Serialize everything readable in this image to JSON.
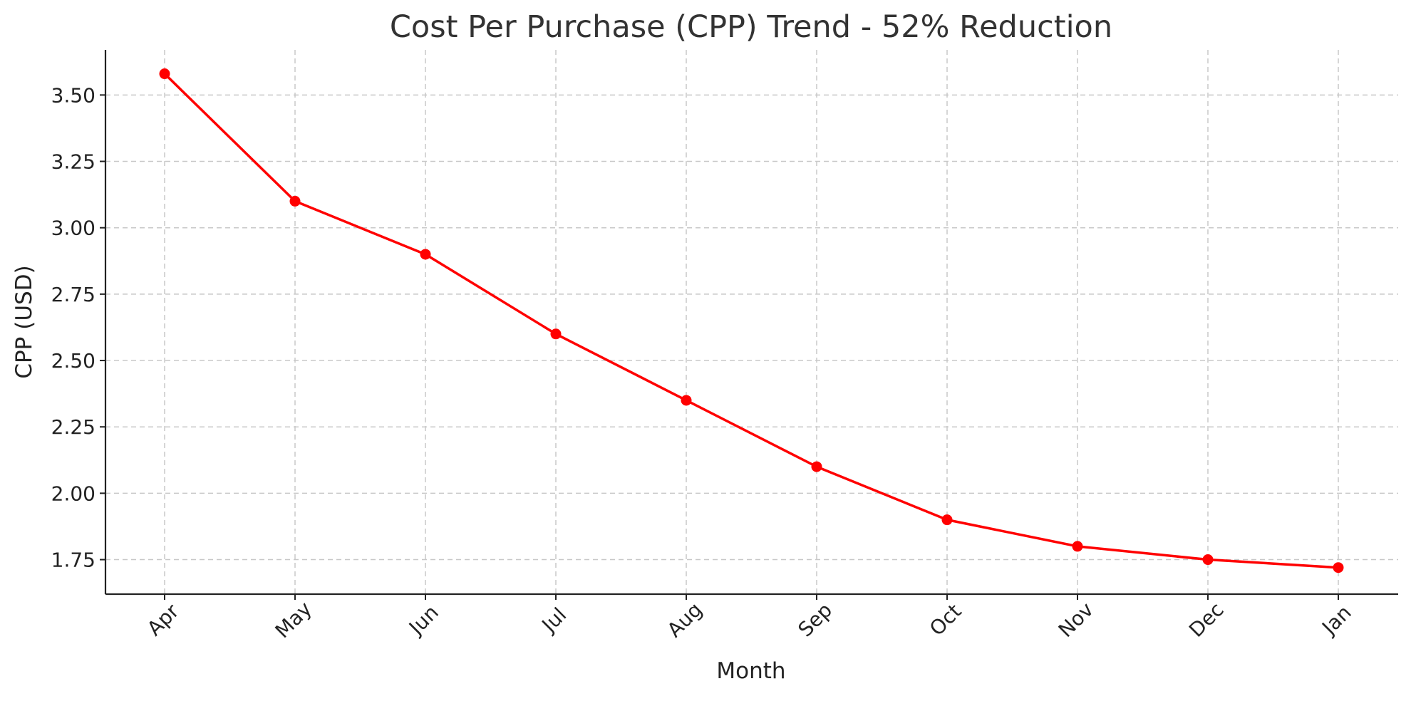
{
  "chart_data": {
    "type": "line",
    "title": "Cost Per Purchase (CPP) Trend - 52% Reduction",
    "xlabel": "Month",
    "ylabel": "CPP (USD)",
    "categories": [
      "Apr",
      "May",
      "Jun",
      "Jul",
      "Aug",
      "Sep",
      "Oct",
      "Nov",
      "Dec",
      "Jan"
    ],
    "series": [
      {
        "values": [
          3.58,
          3.1,
          2.9,
          2.6,
          2.35,
          2.1,
          1.9,
          1.8,
          1.75,
          1.72
        ],
        "color": "#ff0000",
        "marker": "circle"
      }
    ],
    "ylim": [
      1.62,
      3.67
    ],
    "yticks": [
      1.75,
      2.0,
      2.25,
      2.5,
      2.75,
      3.0,
      3.25,
      3.5
    ],
    "ytick_labels": [
      "1.75",
      "2.00",
      "2.25",
      "2.50",
      "2.75",
      "3.00",
      "3.25",
      "3.50"
    ],
    "grid": true,
    "grid_style": "dashed",
    "legend": "none"
  }
}
